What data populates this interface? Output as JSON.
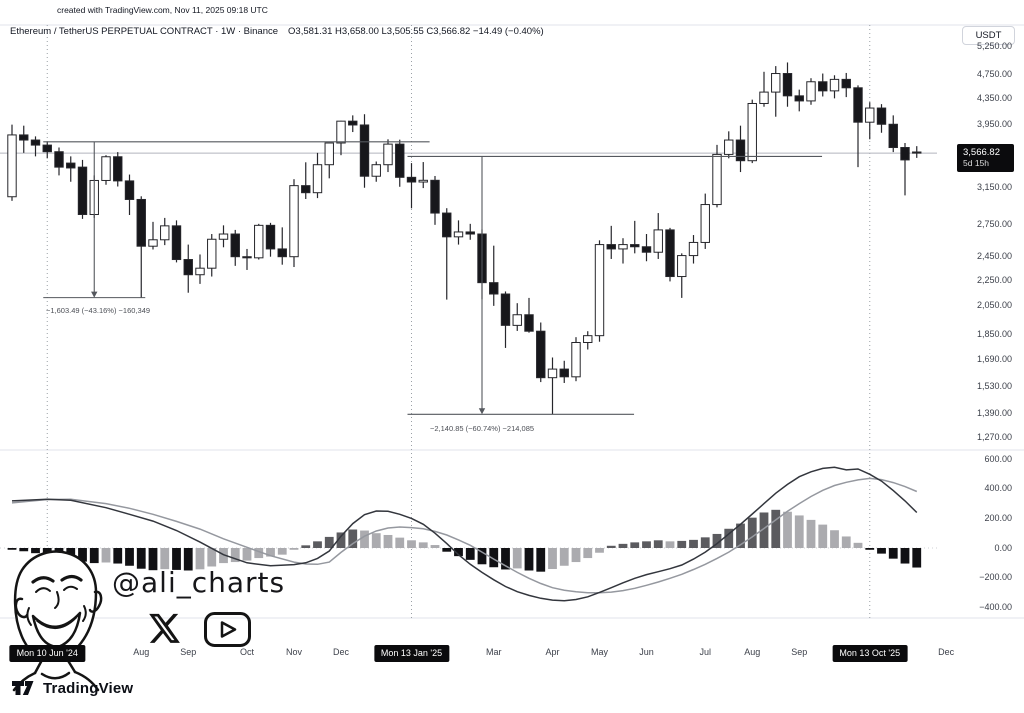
{
  "credit_line": "created with TradingView.com, Nov 11, 2025 09:18 UTC",
  "header": {
    "symbol_title": "Ethereum / TetherUS PERPETUAL CONTRACT · 1W · Binance",
    "ohlc_summary": "O3,581.31 H3,658.00 L3,505.55 C3,566.82 −14.49 (−0.40%)"
  },
  "price_axis": {
    "currency_label": "USDT",
    "badge": {
      "price": "3,566.82",
      "countdown": "5d 15h",
      "value": 3566.82
    },
    "ticks": [
      {
        "label": "5,250.00",
        "value": 5250
      },
      {
        "label": "4,750.00",
        "value": 4750
      },
      {
        "label": "4,350.00",
        "value": 4350
      },
      {
        "label": "3,950.00",
        "value": 3950
      },
      {
        "label": "3,150.00",
        "value": 3150
      },
      {
        "label": "2,750.00",
        "value": 2750
      },
      {
        "label": "2,450.00",
        "value": 2450
      },
      {
        "label": "2,250.00",
        "value": 2250
      },
      {
        "label": "2,050.00",
        "value": 2050
      },
      {
        "label": "1,850.00",
        "value": 1850
      },
      {
        "label": "1,690.00",
        "value": 1690
      },
      {
        "label": "1,530.00",
        "value": 1530
      },
      {
        "label": "1,390.00",
        "value": 1390
      },
      {
        "label": "1,270.00",
        "value": 1270
      }
    ]
  },
  "macd_axis": {
    "ticks": [
      {
        "label": "600.00",
        "value": 600
      },
      {
        "label": "400.00",
        "value": 400
      },
      {
        "label": "200.00",
        "value": 200
      },
      {
        "label": "0.00",
        "value": 0
      },
      {
        "label": "−200.00",
        "value": -200
      },
      {
        "label": "−400.00",
        "value": -400
      }
    ]
  },
  "time_axis": {
    "ticks": [
      {
        "label": "Mon 10 Jun '24",
        "week": 3,
        "badge": true
      },
      {
        "label": "Aug",
        "week": 11
      },
      {
        "label": "Sep",
        "week": 15
      },
      {
        "label": "Oct",
        "week": 20
      },
      {
        "label": "Nov",
        "week": 24
      },
      {
        "label": "Dec",
        "week": 28
      },
      {
        "label": "Mon 13 Jan '25",
        "week": 34,
        "badge": true
      },
      {
        "label": "Mar",
        "week": 41
      },
      {
        "label": "Apr",
        "week": 46
      },
      {
        "label": "May",
        "week": 50
      },
      {
        "label": "Jun",
        "week": 54
      },
      {
        "label": "Jul",
        "week": 59
      },
      {
        "label": "Aug",
        "week": 63
      },
      {
        "label": "Sep",
        "week": 67
      },
      {
        "label": "Mon 13 Oct '25",
        "week": 73,
        "badge": true
      },
      {
        "label": "Dec",
        "week": 79.5
      }
    ]
  },
  "annotations": [
    {
      "text": "−1,603.49 (−43.16%) −160,349",
      "from_week": 3,
      "to_week": 11,
      "price_start": 3715.7,
      "price_end": 2112.2,
      "arrow_week": 7,
      "top_extend_week": 35.2
    },
    {
      "text": "−2,140.85 (−60.74%) −214,085",
      "from_week": 34,
      "to_week": 46,
      "price_start": 3524.6,
      "price_end": 1383.7,
      "arrow_week": 40,
      "top_extend_week": 68.6,
      "bottom_extend_week": 52.6
    }
  ],
  "watermark": {
    "handle": "@ali_charts",
    "icons": [
      "x-twitter-icon",
      "youtube-icon"
    ]
  },
  "footer": {
    "brand": "TradingView"
  },
  "colors": {
    "grid": "#e0e3eb",
    "session_break": "#9aa0a6",
    "zero_line": "#cfd0d4",
    "price_line": "#b2b5be",
    "badge_bg": "#0b0b0d",
    "up_candle": "#ffffff",
    "down_candle": "#17171b",
    "candle_border": "#26262b",
    "hist_rise_pos": "#5b5b5f",
    "hist_fall_pos": "#ababaf",
    "hist_fall_neg": "#111114",
    "hist_rise_neg": "#ababaf",
    "macd_line": "#33363d",
    "signal_line": "#95989f",
    "measure": "#55585e"
  },
  "chart_data": {
    "type": "candlestick",
    "title": "Ethereum / TetherUS PERPETUAL CONTRACT · 1W · Binance",
    "price_scale": "log",
    "ylim_price": [
      1237,
      5287
    ],
    "ohlc_current": {
      "open": 3581.31,
      "high": 3658.0,
      "low": 3505.55,
      "close": 3566.82,
      "change": -14.49,
      "change_pct": -0.4
    },
    "candles": [
      [
        "2024-05-20",
        3045,
        3955,
        3000,
        3810
      ],
      [
        "2024-05-27",
        3810,
        3940,
        3570,
        3740
      ],
      [
        "2024-06-03",
        3740,
        3790,
        3525,
        3672
      ],
      [
        "2024-06-10",
        3672,
        3716,
        3500,
        3585
      ],
      [
        "2024-06-17",
        3585,
        3640,
        3290,
        3390
      ],
      [
        "2024-06-24",
        3440,
        3525,
        3215,
        3380
      ],
      [
        "2024-07-01",
        3390,
        3480,
        2810,
        2855
      ],
      [
        "2024-07-08",
        2855,
        3290,
        2820,
        3230
      ],
      [
        "2024-07-15",
        3230,
        3540,
        3180,
        3520
      ],
      [
        "2024-07-22",
        3520,
        3580,
        3160,
        3225
      ],
      [
        "2024-07-29",
        3225,
        3300,
        2850,
        3015
      ],
      [
        "2024-08-05",
        3015,
        3050,
        2110,
        2545
      ],
      [
        "2024-08-12",
        2545,
        2780,
        2515,
        2605
      ],
      [
        "2024-08-19",
        2605,
        2820,
        2555,
        2740
      ],
      [
        "2024-08-26",
        2740,
        2795,
        2400,
        2425
      ],
      [
        "2024-09-02",
        2425,
        2560,
        2150,
        2295
      ],
      [
        "2024-09-09",
        2295,
        2470,
        2220,
        2350
      ],
      [
        "2024-09-16",
        2350,
        2660,
        2280,
        2610
      ],
      [
        "2024-09-23",
        2610,
        2745,
        2535,
        2660
      ],
      [
        "2024-09-30",
        2660,
        2700,
        2370,
        2450
      ],
      [
        "2024-10-07",
        2450,
        2520,
        2335,
        2440
      ],
      [
        "2024-10-14",
        2440,
        2760,
        2425,
        2745
      ],
      [
        "2024-10-21",
        2745,
        2770,
        2450,
        2520
      ],
      [
        "2024-10-28",
        2520,
        2725,
        2380,
        2450
      ],
      [
        "2024-11-04",
        2450,
        3245,
        2360,
        3170
      ],
      [
        "2024-11-11",
        3170,
        3450,
        3020,
        3090
      ],
      [
        "2024-11-18",
        3090,
        3570,
        3030,
        3420
      ],
      [
        "2024-11-25",
        3420,
        3700,
        3255,
        3700
      ],
      [
        "2024-12-02",
        3700,
        4010,
        3540,
        4005
      ],
      [
        "2024-12-09",
        4005,
        4090,
        3850,
        3950
      ],
      [
        "2024-12-16",
        3950,
        4107,
        3146,
        3280
      ],
      [
        "2024-12-23",
        3280,
        3460,
        3215,
        3420
      ],
      [
        "2024-12-30",
        3420,
        3750,
        3330,
        3685
      ],
      [
        "2025-01-06",
        3685,
        3745,
        3157,
        3267
      ],
      [
        "2025-01-13",
        3267,
        3440,
        2920,
        3212
      ],
      [
        "2025-01-20",
        3212,
        3453,
        3142,
        3232
      ],
      [
        "2025-01-27",
        3232,
        3283,
        2750,
        2870
      ],
      [
        "2025-02-03",
        2870,
        2921,
        2097,
        2633
      ],
      [
        "2025-02-10",
        2633,
        2795,
        2560,
        2680
      ],
      [
        "2025-02-17",
        2680,
        2760,
        2605,
        2660
      ],
      [
        "2025-02-24",
        2660,
        2705,
        2100,
        2230
      ],
      [
        "2025-03-03",
        2230,
        2550,
        2050,
        2140
      ],
      [
        "2025-03-10",
        2140,
        2160,
        1760,
        1910
      ],
      [
        "2025-03-17",
        1910,
        2070,
        1872,
        1985
      ],
      [
        "2025-03-24",
        1985,
        2110,
        1860,
        1870
      ],
      [
        "2025-03-31",
        1870,
        1930,
        1555,
        1580
      ],
      [
        "2025-04-07",
        1580,
        1700,
        1385,
        1630
      ],
      [
        "2025-04-14",
        1630,
        1680,
        1550,
        1585
      ],
      [
        "2025-04-21",
        1585,
        1830,
        1560,
        1795
      ],
      [
        "2025-04-28",
        1795,
        1870,
        1750,
        1840
      ],
      [
        "2025-05-05",
        1840,
        2600,
        1800,
        2560
      ],
      [
        "2025-05-12",
        2560,
        2740,
        2430,
        2520
      ],
      [
        "2025-05-19",
        2520,
        2620,
        2390,
        2560
      ],
      [
        "2025-05-26",
        2560,
        2790,
        2480,
        2540
      ],
      [
        "2025-06-02",
        2540,
        2660,
        2410,
        2490
      ],
      [
        "2025-06-09",
        2490,
        2870,
        2430,
        2700
      ],
      [
        "2025-06-16",
        2700,
        2720,
        2240,
        2280
      ],
      [
        "2025-06-23",
        2280,
        2480,
        2110,
        2460
      ],
      [
        "2025-06-30",
        2460,
        2650,
        2390,
        2580
      ],
      [
        "2025-07-07",
        2580,
        3080,
        2520,
        2960
      ],
      [
        "2025-07-14",
        2960,
        3675,
        2930,
        3550
      ],
      [
        "2025-07-21",
        3550,
        3860,
        3500,
        3740
      ],
      [
        "2025-07-28",
        3740,
        3940,
        3330,
        3470
      ],
      [
        "2025-08-04",
        3470,
        4330,
        3440,
        4270
      ],
      [
        "2025-08-11",
        4270,
        4790,
        4220,
        4450
      ],
      [
        "2025-08-18",
        4450,
        4890,
        4070,
        4760
      ],
      [
        "2025-08-25",
        4760,
        4955,
        4220,
        4390
      ],
      [
        "2025-09-01",
        4390,
        4490,
        4150,
        4310
      ],
      [
        "2025-09-08",
        4310,
        4680,
        4250,
        4620
      ],
      [
        "2025-09-15",
        4620,
        4760,
        4380,
        4470
      ],
      [
        "2025-09-22",
        4470,
        4730,
        4350,
        4660
      ],
      [
        "2025-09-29",
        4660,
        4770,
        4370,
        4520
      ],
      [
        "2025-10-06",
        4520,
        4560,
        3390,
        3990
      ],
      [
        "2025-10-13",
        3990,
        4290,
        3750,
        4200
      ],
      [
        "2025-10-20",
        4200,
        4260,
        3840,
        3960
      ],
      [
        "2025-10-27",
        3960,
        4090,
        3580,
        3640
      ],
      [
        "2025-11-03",
        3640,
        3700,
        3060,
        3480
      ],
      [
        "2025-11-10",
        3581.31,
        3658,
        3505.55,
        3566.82
      ]
    ],
    "macd": {
      "ylim": [
        -400,
        600
      ],
      "histogram": [
        -12,
        -22,
        -35,
        -50,
        -65,
        -78,
        -92,
        -102,
        -98,
        -105,
        -120,
        -140,
        -150,
        -143,
        -148,
        -152,
        -144,
        -125,
        -102,
        -95,
        -85,
        -68,
        -58,
        -45,
        -12,
        18,
        45,
        75,
        105,
        125,
        118,
        100,
        88,
        70,
        52,
        38,
        20,
        -25,
        -55,
        -80,
        -110,
        -130,
        -145,
        -138,
        -152,
        -160,
        -142,
        -120,
        -95,
        -68,
        -32,
        15,
        28,
        38,
        45,
        52,
        45,
        48,
        55,
        72,
        95,
        130,
        165,
        205,
        240,
        258,
        245,
        220,
        190,
        158,
        120,
        78,
        35,
        -12,
        -38,
        -72,
        -105,
        -132
      ],
      "macd_line": [
        [
          0,
          318
        ],
        [
          3,
          330
        ],
        [
          5,
          322
        ],
        [
          8,
          272
        ],
        [
          10,
          228
        ],
        [
          12,
          182
        ],
        [
          14,
          118
        ],
        [
          16,
          40
        ],
        [
          18,
          -45
        ],
        [
          20,
          -100
        ],
        [
          22,
          -120
        ],
        [
          24,
          -112
        ],
        [
          25,
          -100
        ],
        [
          26,
          -70
        ],
        [
          27,
          -20
        ],
        [
          28,
          80
        ],
        [
          29,
          165
        ],
        [
          30,
          225
        ],
        [
          31,
          250
        ],
        [
          32,
          248
        ],
        [
          33,
          228
        ],
        [
          34,
          200
        ],
        [
          35,
          160
        ],
        [
          36,
          100
        ],
        [
          37,
          30
        ],
        [
          38,
          -45
        ],
        [
          39,
          -110
        ],
        [
          40,
          -165
        ],
        [
          41,
          -215
        ],
        [
          42,
          -260
        ],
        [
          43,
          -295
        ],
        [
          44,
          -320
        ],
        [
          45,
          -340
        ],
        [
          46,
          -352
        ],
        [
          47,
          -356
        ],
        [
          48,
          -348
        ],
        [
          49,
          -330
        ],
        [
          50,
          -300
        ],
        [
          51,
          -268
        ],
        [
          52,
          -235
        ],
        [
          53,
          -205
        ],
        [
          54,
          -180
        ],
        [
          55,
          -160
        ],
        [
          56,
          -140
        ],
        [
          57,
          -115
        ],
        [
          58,
          -75
        ],
        [
          59,
          -28
        ],
        [
          60,
          30
        ],
        [
          61,
          95
        ],
        [
          62,
          160
        ],
        [
          63,
          230
        ],
        [
          64,
          300
        ],
        [
          65,
          370
        ],
        [
          66,
          430
        ],
        [
          67,
          482
        ],
        [
          68,
          515
        ],
        [
          69,
          538
        ],
        [
          70,
          545
        ],
        [
          71,
          528
        ],
        [
          72,
          534
        ],
        [
          73,
          498
        ],
        [
          74,
          452
        ],
        [
          75,
          388
        ],
        [
          76,
          318
        ],
        [
          77,
          240
        ]
      ],
      "signal_line": [
        [
          0,
          305
        ],
        [
          3,
          328
        ],
        [
          5,
          330
        ],
        [
          8,
          300
        ],
        [
          10,
          268
        ],
        [
          12,
          228
        ],
        [
          14,
          180
        ],
        [
          16,
          128
        ],
        [
          18,
          62
        ],
        [
          20,
          5
        ],
        [
          22,
          -52
        ],
        [
          24,
          -95
        ],
        [
          25,
          -108
        ],
        [
          26,
          -110
        ],
        [
          27,
          -95
        ],
        [
          28,
          -30
        ],
        [
          29,
          30
        ],
        [
          30,
          80
        ],
        [
          31,
          115
        ],
        [
          32,
          135
        ],
        [
          33,
          142
        ],
        [
          34,
          138
        ],
        [
          35,
          130
        ],
        [
          36,
          112
        ],
        [
          37,
          88
        ],
        [
          38,
          55
        ],
        [
          39,
          18
        ],
        [
          40,
          -28
        ],
        [
          41,
          -75
        ],
        [
          42,
          -120
        ],
        [
          43,
          -165
        ],
        [
          44,
          -205
        ],
        [
          45,
          -240
        ],
        [
          46,
          -268
        ],
        [
          47,
          -285
        ],
        [
          48,
          -296
        ],
        [
          49,
          -302
        ],
        [
          50,
          -303
        ],
        [
          51,
          -298
        ],
        [
          52,
          -288
        ],
        [
          53,
          -272
        ],
        [
          54,
          -252
        ],
        [
          55,
          -230
        ],
        [
          56,
          -205
        ],
        [
          57,
          -178
        ],
        [
          58,
          -145
        ],
        [
          59,
          -110
        ],
        [
          60,
          -70
        ],
        [
          61,
          -28
        ],
        [
          62,
          22
        ],
        [
          63,
          75
        ],
        [
          64,
          132
        ],
        [
          65,
          190
        ],
        [
          66,
          248
        ],
        [
          67,
          300
        ],
        [
          68,
          348
        ],
        [
          69,
          390
        ],
        [
          70,
          422
        ],
        [
          71,
          444
        ],
        [
          72,
          460
        ],
        [
          73,
          470
        ],
        [
          74,
          462
        ],
        [
          75,
          442
        ],
        [
          76,
          415
        ],
        [
          77,
          382
        ]
      ]
    }
  }
}
